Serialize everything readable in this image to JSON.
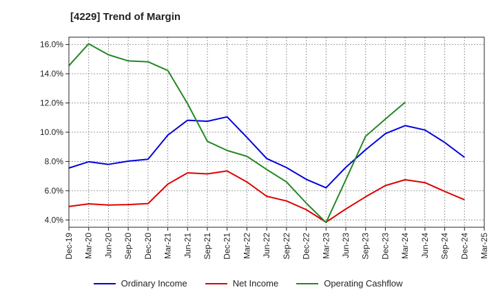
{
  "chart_data": {
    "type": "line",
    "title": "[4229]  Trend of Margin",
    "xlabel": "",
    "ylabel": "",
    "x": [
      "Dec-19",
      "Mar-20",
      "Jun-20",
      "Sep-20",
      "Dec-20",
      "Mar-21",
      "Jun-21",
      "Sep-21",
      "Dec-21",
      "Mar-22",
      "Jun-22",
      "Sep-22",
      "Dec-22",
      "Mar-23",
      "Jun-23",
      "Sep-23",
      "Dec-23",
      "Mar-24",
      "Jun-24",
      "Sep-24",
      "Dec-24",
      "Mar-25"
    ],
    "ylim": [
      3.5,
      16.5
    ],
    "yticks": [
      "4.0%",
      "6.0%",
      "8.0%",
      "10.0%",
      "12.0%",
      "14.0%",
      "16.0%"
    ],
    "ytick_values": [
      4,
      6,
      8,
      10,
      12,
      14,
      16
    ],
    "grid": true,
    "legend_position": "bottom",
    "series": [
      {
        "name": "Ordinary Income",
        "color": "#0000dd",
        "values": [
          7.55,
          7.98,
          7.8,
          8.02,
          8.15,
          9.8,
          10.82,
          10.75,
          11.05,
          9.65,
          8.2,
          7.58,
          6.78,
          6.2,
          7.6,
          8.8,
          9.9,
          10.45,
          10.15,
          9.3,
          8.28,
          null
        ]
      },
      {
        "name": "Net Income",
        "color": "#dd0000",
        "values": [
          4.92,
          5.1,
          5.02,
          5.05,
          5.12,
          6.45,
          7.22,
          7.15,
          7.35,
          6.6,
          5.62,
          5.3,
          4.7,
          3.85,
          4.75,
          5.58,
          6.35,
          6.75,
          6.55,
          5.95,
          5.38,
          null
        ]
      },
      {
        "name": "Operating Cashflow",
        "color": "#228822",
        "values": [
          14.55,
          16.05,
          15.3,
          14.88,
          14.82,
          14.22,
          11.95,
          9.38,
          8.75,
          8.35,
          7.45,
          6.6,
          5.15,
          3.82,
          6.75,
          9.72,
          10.9,
          12.05,
          null,
          null,
          null,
          null
        ]
      }
    ]
  }
}
